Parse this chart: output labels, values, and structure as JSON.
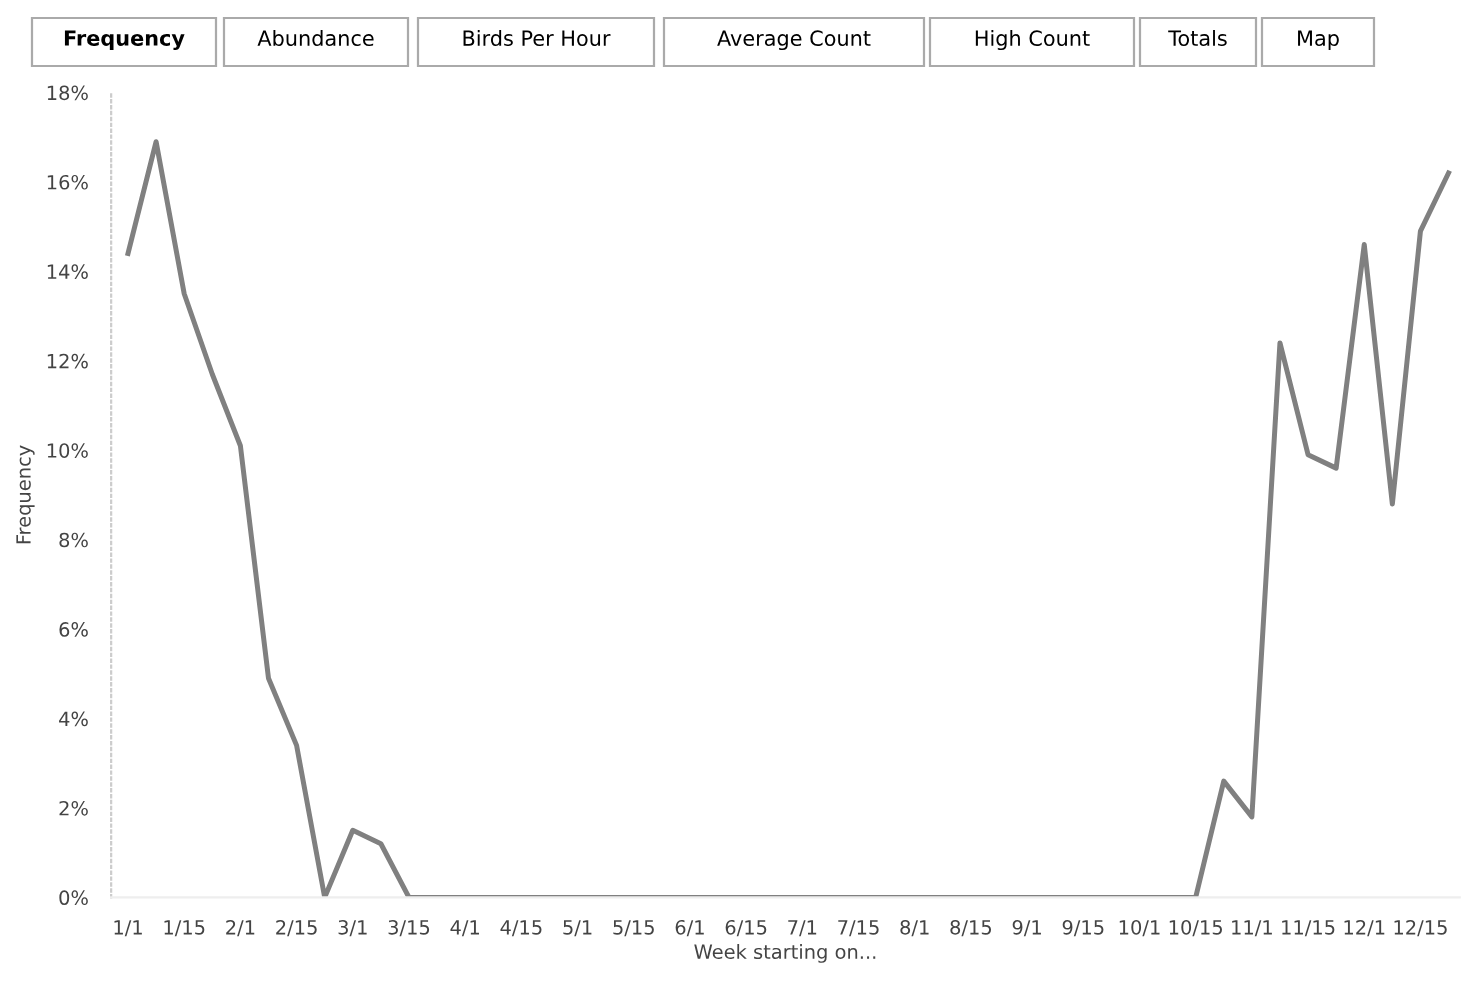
{
  "chart_data": {
    "type": "line",
    "xlabel": "Week starting on...",
    "ylabel": "Frequency",
    "annotations": [
      "Frequency",
      "Abundance",
      "Birds Per Hour",
      "Average Count",
      "High Count",
      "Totals",
      "Map"
    ],
    "categories": [
      "1/1",
      null,
      "1/15",
      null,
      "2/1",
      null,
      "2/15",
      null,
      "3/1",
      null,
      "3/15",
      null,
      "4/1",
      null,
      "4/15",
      null,
      "5/1",
      null,
      "5/15",
      null,
      "6/1",
      null,
      "6/15",
      null,
      "7/1",
      null,
      "7/15",
      null,
      "8/1",
      null,
      "8/15",
      null,
      "9/1",
      null,
      "9/15",
      null,
      "10/1",
      null,
      "10/15",
      null,
      "11/1",
      null,
      "11/15",
      null,
      "12/1",
      null,
      "12/15",
      null
    ],
    "series": [
      {
        "color": "#808080",
        "values": [
          14.4,
          16.9,
          13.5,
          11.7,
          10.1,
          4.9,
          3.4,
          0,
          1.5,
          1.2,
          0,
          0,
          0,
          0,
          0,
          0,
          0,
          0,
          0,
          0,
          0,
          0,
          0,
          0,
          0,
          0,
          0,
          0,
          0,
          0,
          0,
          0,
          0,
          0,
          0,
          0,
          0,
          0,
          0,
          2.6,
          1.8,
          12.4,
          9.9,
          9.6,
          14.6,
          8.8,
          14.9,
          16.2
        ]
      }
    ],
    "ylim": [
      0,
      18
    ],
    "yticks": [
      {
        "value": 0,
        "label": "0%"
      },
      {
        "value": 2,
        "label": "2%"
      },
      {
        "value": 4,
        "label": "4%"
      },
      {
        "value": 6,
        "label": "6%"
      },
      {
        "value": 8,
        "label": "8%"
      },
      {
        "value": 10,
        "label": "10%"
      },
      {
        "value": 12,
        "label": "12%"
      },
      {
        "value": 14,
        "label": "14%"
      },
      {
        "value": 16,
        "label": "16%"
      },
      {
        "value": 18,
        "label": "18%"
      }
    ],
    "grid": false,
    "marker": "none",
    "line_style": "solid"
  }
}
